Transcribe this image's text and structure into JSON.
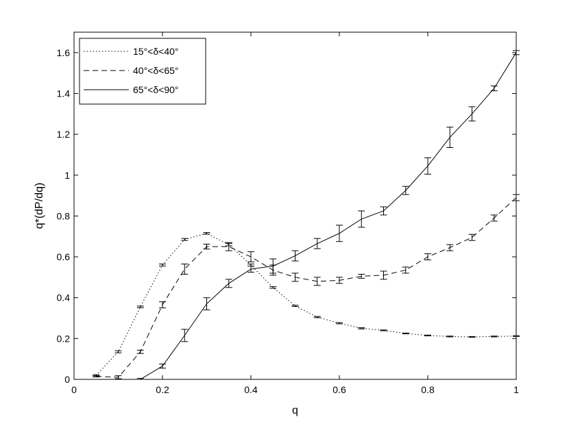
{
  "chart_data": {
    "type": "line",
    "xlabel": "q",
    "ylabel": "q*(dP/dq)",
    "xlim": [
      0,
      1
    ],
    "ylim": [
      0,
      1.7
    ],
    "xticks": [
      "0",
      "0.2",
      "0.4",
      "0.6",
      "0.8",
      "1"
    ],
    "yticks": [
      "0",
      "0.2",
      "0.4",
      "0.6",
      "0.8",
      "1",
      "1.2",
      "1.4",
      "1.6"
    ],
    "grid": false,
    "legend_position": "top-left",
    "series": [
      {
        "name": "15°<δ<40°",
        "style": "dotted",
        "x": [
          0.05,
          0.1,
          0.15,
          0.2,
          0.25,
          0.3,
          0.35,
          0.4,
          0.45,
          0.5,
          0.55,
          0.6,
          0.65,
          0.7,
          0.75,
          0.8,
          0.85,
          0.9,
          0.95,
          1.0
        ],
        "y": [
          0.02,
          0.135,
          0.355,
          0.56,
          0.685,
          0.715,
          0.66,
          0.56,
          0.45,
          0.36,
          0.305,
          0.275,
          0.25,
          0.24,
          0.225,
          0.215,
          0.21,
          0.208,
          0.21,
          0.212
        ],
        "err": [
          0.003,
          0.005,
          0.004,
          0.005,
          0.005,
          0.004,
          0.006,
          0.005,
          0.004,
          0.003,
          0.003,
          0.003,
          0.003,
          0.002,
          0.002,
          0.002,
          0.002,
          0.002,
          0.002,
          0.002
        ]
      },
      {
        "name": "40°<δ<65°",
        "style": "dashed",
        "x": [
          0.05,
          0.1,
          0.15,
          0.2,
          0.25,
          0.3,
          0.35,
          0.4,
          0.45,
          0.5,
          0.55,
          0.6,
          0.65,
          0.7,
          0.75,
          0.8,
          0.85,
          0.9,
          0.95,
          1.0
        ],
        "y": [
          0.015,
          0.01,
          0.135,
          0.365,
          0.54,
          0.65,
          0.65,
          0.6,
          0.535,
          0.5,
          0.48,
          0.485,
          0.505,
          0.51,
          0.535,
          0.6,
          0.645,
          0.695,
          0.79,
          0.89
        ],
        "err": [
          0.003,
          0.008,
          0.008,
          0.015,
          0.025,
          0.012,
          0.02,
          0.025,
          0.025,
          0.02,
          0.02,
          0.015,
          0.01,
          0.02,
          0.015,
          0.015,
          0.015,
          0.015,
          0.015,
          0.015
        ]
      },
      {
        "name": "65°<δ<90°",
        "style": "solid",
        "x": [
          0.1,
          0.15,
          0.2,
          0.25,
          0.3,
          0.35,
          0.4,
          0.45,
          0.5,
          0.55,
          0.6,
          0.65,
          0.7,
          0.75,
          0.8,
          0.85,
          0.9,
          0.95,
          1.0
        ],
        "y": [
          0.0,
          0.0,
          0.065,
          0.215,
          0.37,
          0.47,
          0.54,
          0.555,
          0.605,
          0.665,
          0.715,
          0.785,
          0.825,
          0.925,
          1.045,
          1.185,
          1.3,
          1.425,
          1.6
        ],
        "err": [
          0.003,
          0.005,
          0.01,
          0.03,
          0.03,
          0.02,
          0.015,
          0.035,
          0.025,
          0.025,
          0.04,
          0.04,
          0.02,
          0.02,
          0.04,
          0.05,
          0.035,
          0.012,
          0.01
        ]
      }
    ]
  }
}
